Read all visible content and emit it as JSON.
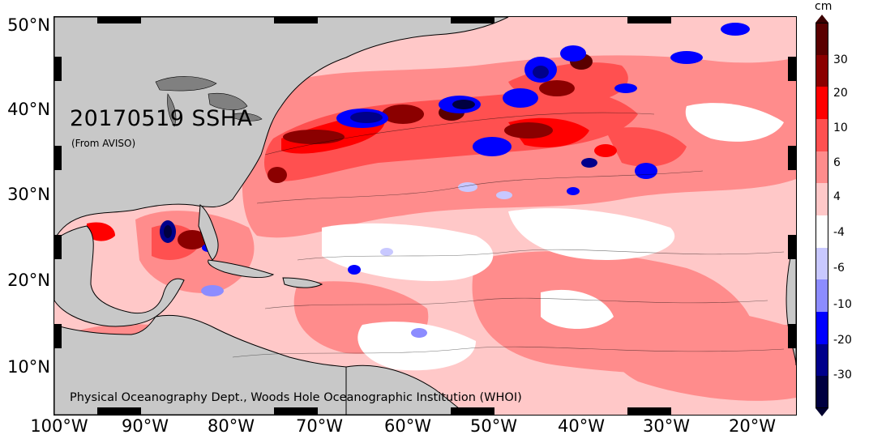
{
  "map": {
    "title": "20170519 SSHA",
    "subtitle": "(From AVISO)",
    "credit": "Physical Oceanography Dept., Woods Hole Oceanographic Institution (WHOI)",
    "lat_labels": [
      "50°N",
      "40°N",
      "30°N",
      "20°N",
      "10°N"
    ],
    "lon_labels": [
      "100°W",
      "90°W",
      "80°W",
      "70°W",
      "60°W",
      "50°W",
      "40°W",
      "30°W",
      "20°W"
    ],
    "land_color": "#c8c8c8",
    "extent": {
      "lon_min": -100,
      "lon_max": -15,
      "lat_min": 4.5,
      "lat_max": 50
    }
  },
  "colorbar": {
    "unit": "cm",
    "tick_labels": [
      "30",
      "20",
      "10",
      "6",
      "4",
      "-4",
      "-6",
      "-10",
      "-20",
      "-30"
    ],
    "colors": [
      "#5a0000",
      "#8b0000",
      "#ff0000",
      "#ff5050",
      "#ff8c8c",
      "#ffc8c8",
      "#ffffff",
      "#c8c8ff",
      "#8c8cff",
      "#0000ff",
      "#00008b",
      "#000040"
    ]
  }
}
